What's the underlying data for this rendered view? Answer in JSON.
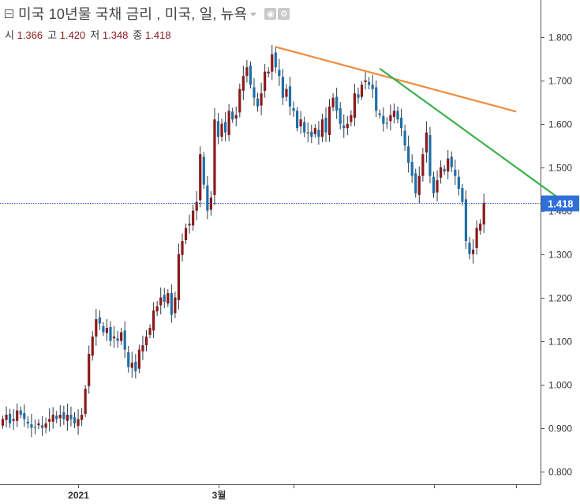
{
  "legend": {
    "title": "미국 10년물 국채 금리 , 미국, 일, 뉴욕",
    "open_label": "시",
    "open": "1.366",
    "high_label": "고",
    "high": "1.420",
    "low_label": "저",
    "low": "1.348",
    "close_label": "종",
    "close": "1.418"
  },
  "colors": {
    "up": "#8b1a1a",
    "down": "#1f6fa8",
    "orange_trend": "#f08a3c",
    "green_trend": "#3cb04a",
    "price_line": "#2e5fd6",
    "price_label_bg": "#2f6fd9",
    "axis": "#555555"
  },
  "chart_data": {
    "type": "candlestick",
    "ylim": [
      0.77,
      1.885
    ],
    "yticks": [
      0.8,
      0.9,
      1.0,
      1.1,
      1.2,
      1.3,
      1.4,
      1.5,
      1.6,
      1.7,
      1.8
    ],
    "ytick_labels": [
      "0.800",
      "0.900",
      "1.000",
      "1.100",
      "1.200",
      "1.300",
      "1.400",
      "1.500",
      "1.600",
      "1.700",
      "1.800"
    ],
    "xtick_labels": [
      {
        "index": 21,
        "label": "2021"
      },
      {
        "index": 60,
        "label": "3월"
      },
      {
        "index": 81,
        "label": ""
      },
      {
        "index": 120,
        "label": ""
      },
      {
        "index": 143,
        "label": ""
      }
    ],
    "last_price": 1.418,
    "last_price_label": "1.418",
    "close": [
      0.92,
      0.93,
      0.91,
      0.92,
      0.94,
      0.93,
      0.92,
      0.91,
      0.9,
      0.9,
      0.91,
      0.9,
      0.91,
      0.92,
      0.93,
      0.92,
      0.93,
      0.92,
      0.93,
      0.92,
      0.91,
      0.92,
      0.93,
      0.99,
      1.07,
      1.11,
      1.15,
      1.14,
      1.12,
      1.13,
      1.1,
      1.11,
      1.1,
      1.12,
      1.08,
      1.04,
      1.05,
      1.03,
      1.08,
      1.09,
      1.11,
      1.13,
      1.17,
      1.18,
      1.2,
      1.19,
      1.21,
      1.16,
      1.2,
      1.3,
      1.33,
      1.36,
      1.37,
      1.4,
      1.42,
      1.53,
      1.46,
      1.4,
      1.43,
      1.61,
      1.57,
      1.6,
      1.58,
      1.63,
      1.61,
      1.62,
      1.68,
      1.71,
      1.73,
      1.69,
      1.66,
      1.64,
      1.67,
      1.72,
      1.72,
      1.76,
      1.73,
      1.71,
      1.66,
      1.68,
      1.64,
      1.63,
      1.59,
      1.61,
      1.58,
      1.58,
      1.57,
      1.59,
      1.57,
      1.61,
      1.58,
      1.64,
      1.66,
      1.63,
      1.6,
      1.59,
      1.6,
      1.62,
      1.67,
      1.66,
      1.69,
      1.7,
      1.69,
      1.68,
      1.63,
      1.62,
      1.6,
      1.6,
      1.62,
      1.63,
      1.61,
      1.59,
      1.55,
      1.51,
      1.48,
      1.44,
      1.48,
      1.53,
      1.58,
      1.48,
      1.44,
      1.47,
      1.5,
      1.49,
      1.52,
      1.5,
      1.48,
      1.45,
      1.42,
      1.33,
      1.3,
      1.31,
      1.36,
      1.37,
      1.418
    ]
  }
}
